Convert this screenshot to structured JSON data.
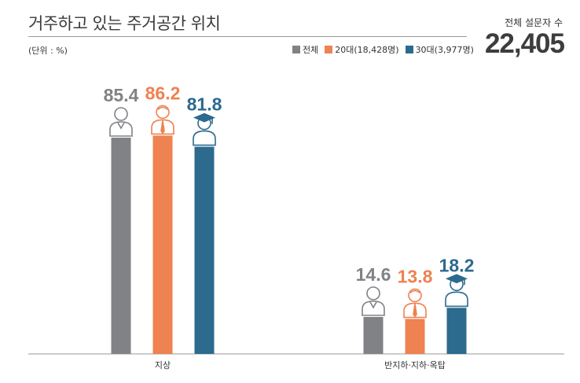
{
  "title": "거주하고 있는 주거공간 위치",
  "unit": "(단위 : %)",
  "total": {
    "label": "전체 설문자 수",
    "value": "22,405"
  },
  "chart_data": {
    "type": "bar",
    "categories": [
      "지상",
      "반지하·지하·옥탑"
    ],
    "series": [
      {
        "name": "전체",
        "values": [
          85.4,
          14.6
        ],
        "color": "#808285",
        "icon": "adult-person-icon"
      },
      {
        "name": "20대(18,428명)",
        "values": [
          86.2,
          13.8
        ],
        "color": "#ee8251",
        "icon": "young-worker-icon"
      },
      {
        "name": "30대(3,977명)",
        "values": [
          81.8,
          18.2
        ],
        "color": "#2c6a8e",
        "icon": "graduate-icon"
      }
    ],
    "ylim": [
      0,
      100
    ],
    "legend": "top-right",
    "grid": false
  }
}
